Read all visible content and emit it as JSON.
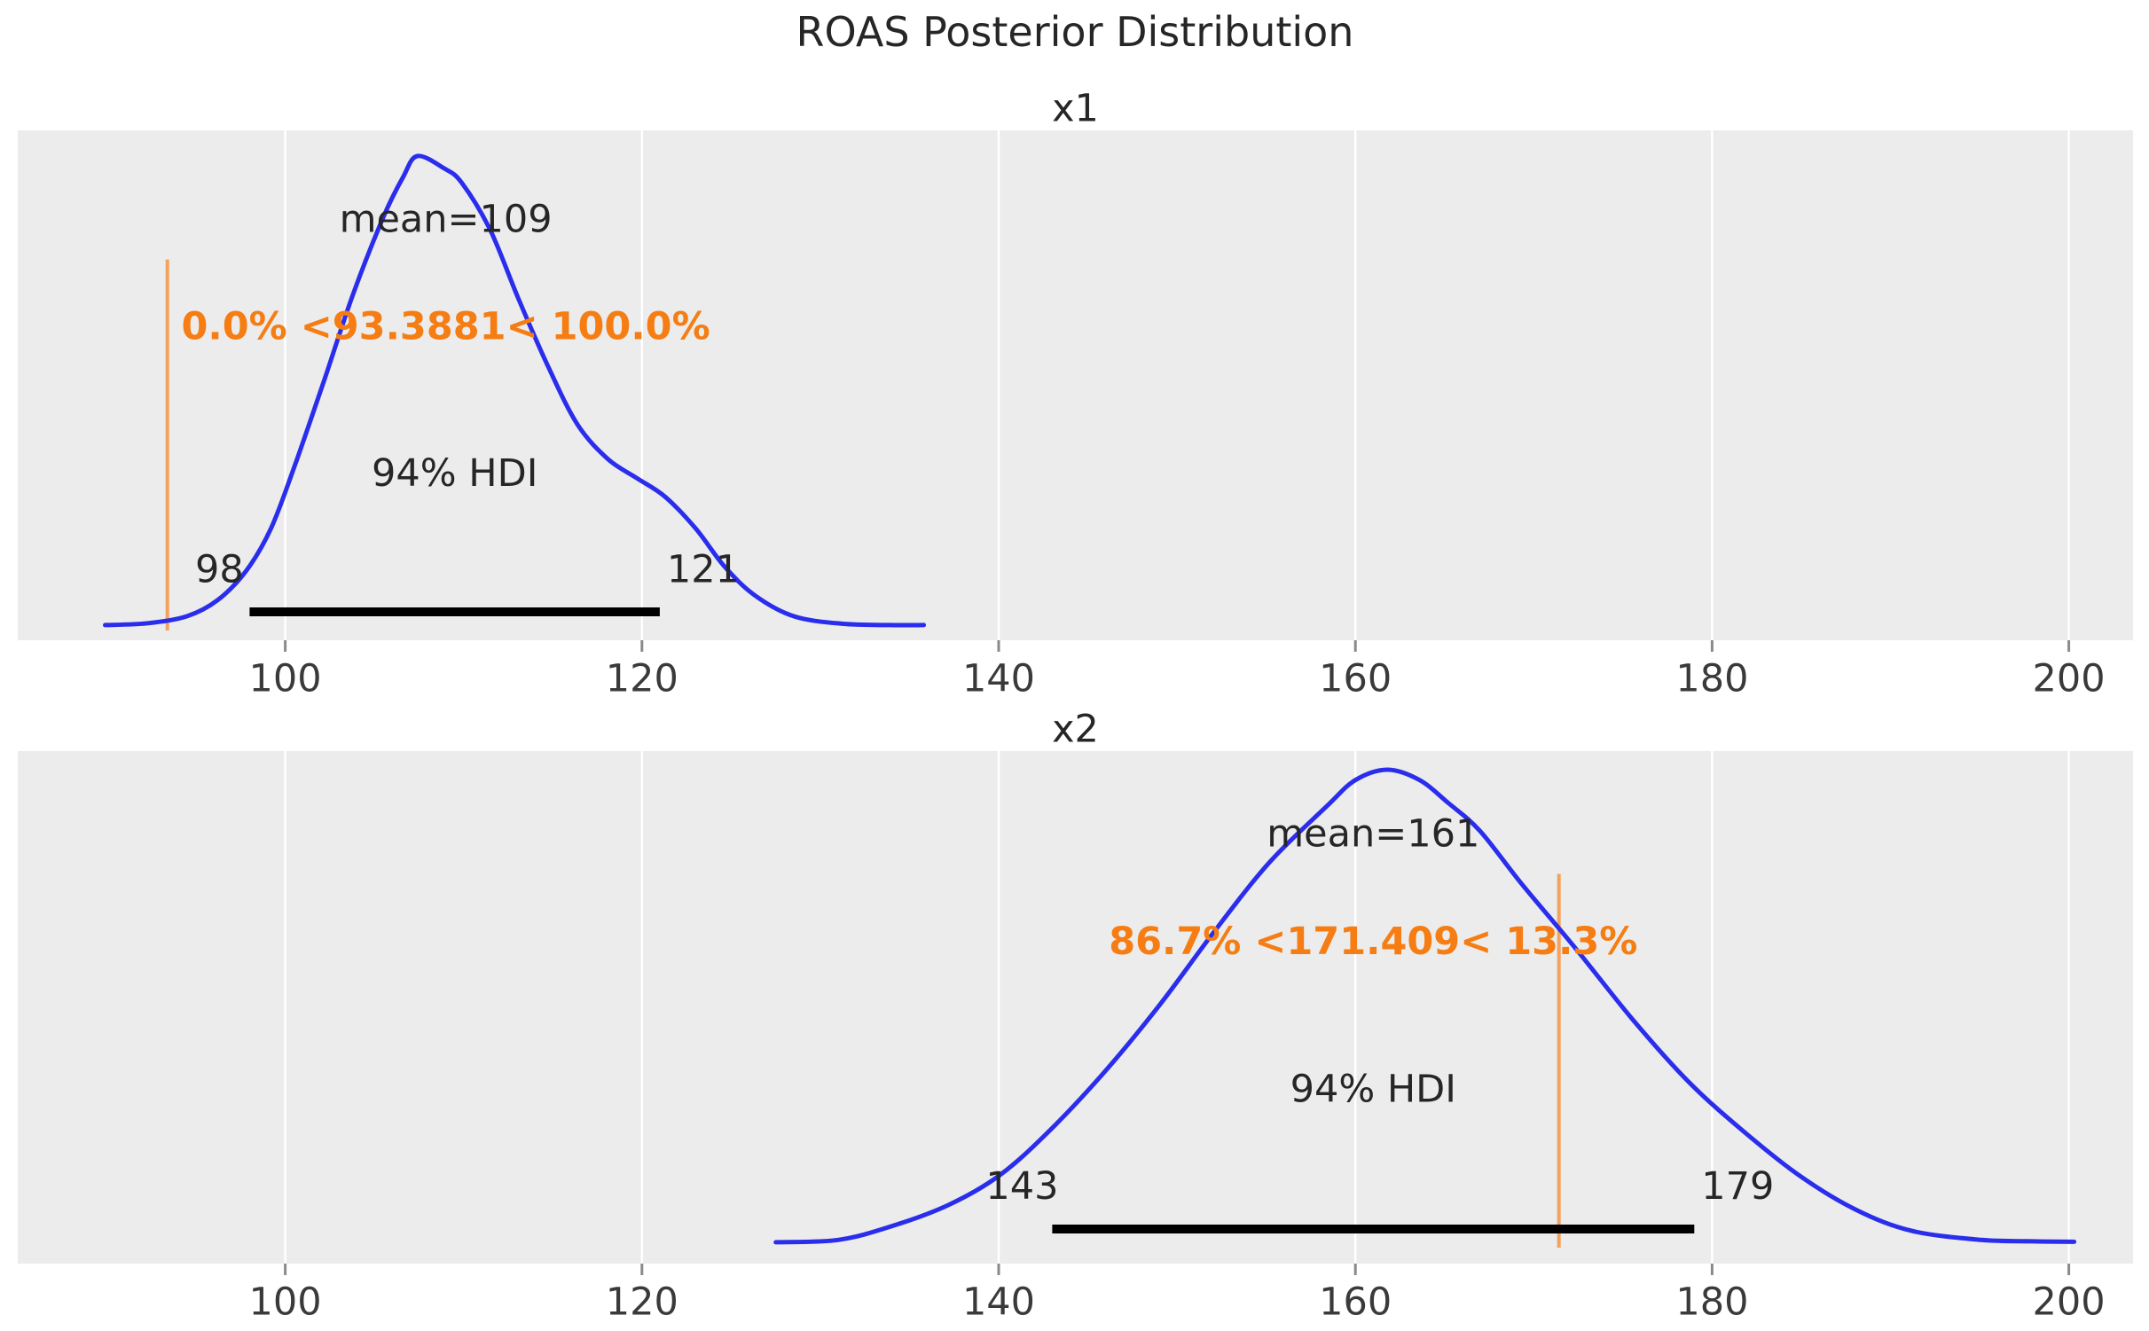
{
  "title": "ROAS Posterior Distribution",
  "colors": {
    "figure_bg": "#ffffff",
    "panel_bg": "#ececec",
    "grid": "#ffffff",
    "curve": "#2a2eec",
    "hdi_bar": "#000000",
    "ref_line": "#f59b4e",
    "ref_text": "#f57d13",
    "text": "#262626",
    "tick_text": "#3a3a3a",
    "tick_mark": "#8a8a8a"
  },
  "chart_data": [
    {
      "type": "line",
      "variable": "x1",
      "title": "x1",
      "mean": 109,
      "mean_label": "mean=109",
      "hdi_probability": "94%",
      "hdi_title": "94% HDI",
      "hdi_interval": [
        98,
        121
      ],
      "hdi_lower_label": "98",
      "hdi_upper_label": "121",
      "ref_val": 93.3881,
      "ref_label": "0.0% <93.3881< 100.0%",
      "xlim": [
        85,
        203.6
      ],
      "xticks": [
        100,
        120,
        140,
        160,
        180,
        200
      ],
      "grid": "vertical-white",
      "kde": {
        "x": [
          89.9,
          92.3,
          94.5,
          96.2,
          97.8,
          99.2,
          100.5,
          102.2,
          103.8,
          105.5,
          106.6,
          107.4,
          108.9,
          109.9,
          111.5,
          113.1,
          114.8,
          116.4,
          118.1,
          119.7,
          121.3,
          123.0,
          124.6,
          126.3,
          128.5,
          131.2,
          133.9,
          135.8
        ],
        "density": [
          0.002,
          0.006,
          0.021,
          0.055,
          0.117,
          0.208,
          0.338,
          0.525,
          0.706,
          0.87,
          0.955,
          1.0,
          0.974,
          0.943,
          0.842,
          0.694,
          0.547,
          0.428,
          0.355,
          0.315,
          0.275,
          0.208,
          0.128,
          0.066,
          0.021,
          0.005,
          0.002,
          0.002
        ]
      }
    },
    {
      "type": "line",
      "variable": "x2",
      "title": "x2",
      "mean": 161,
      "mean_label": "mean=161",
      "hdi_probability": "94%",
      "hdi_title": "94% HDI",
      "hdi_interval": [
        143,
        179
      ],
      "hdi_lower_label": "143",
      "hdi_upper_label": "179",
      "ref_val": 171.409,
      "ref_label": "86.7% <171.409< 13.3%",
      "xlim": [
        85,
        203.6
      ],
      "xticks": [
        100,
        120,
        140,
        160,
        180,
        200
      ],
      "grid": "vertical-white",
      "kde": {
        "x": [
          127.5,
          131.0,
          134.0,
          137.2,
          140.0,
          142.7,
          145.8,
          149.0,
          152.1,
          155.2,
          158.4,
          160.0,
          161.8,
          163.6,
          165.2,
          167.0,
          169.3,
          172.4,
          175.6,
          178.7,
          181.8,
          185.0,
          188.1,
          191.2,
          195.1,
          198.0,
          200.3
        ],
        "density": [
          0.002,
          0.007,
          0.036,
          0.081,
          0.142,
          0.232,
          0.356,
          0.502,
          0.659,
          0.805,
          0.923,
          0.978,
          1.0,
          0.978,
          0.93,
          0.87,
          0.76,
          0.62,
          0.47,
          0.34,
          0.235,
          0.14,
          0.07,
          0.026,
          0.007,
          0.004,
          0.003
        ]
      }
    }
  ]
}
